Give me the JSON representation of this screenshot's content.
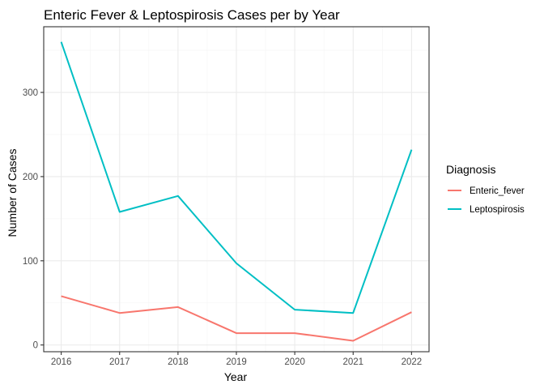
{
  "chart_data": {
    "type": "line",
    "title": "Enteric Fever & Leptospirosis Cases per by Year",
    "xlabel": "Year",
    "ylabel": "Number of Cases",
    "x": [
      2016,
      2017,
      2018,
      2019,
      2020,
      2021,
      2022
    ],
    "x_ticks": [
      "2016",
      "2017",
      "2018",
      "2019",
      "2020",
      "2021",
      "2022"
    ],
    "y_ticks": [
      0,
      100,
      200,
      300
    ],
    "xlim": [
      2015.7,
      2022.3
    ],
    "ylim": [
      -8,
      378
    ],
    "grid": true,
    "legend_title": "Diagnosis",
    "legend_position": "right",
    "series": [
      {
        "name": "Enteric_fever",
        "color": "#F8766D",
        "values": [
          58,
          38,
          45,
          14,
          14,
          5,
          39
        ]
      },
      {
        "name": "Leptospirosis",
        "color": "#00BFC4",
        "values": [
          360,
          158,
          177,
          97,
          42,
          38,
          232
        ]
      }
    ]
  }
}
